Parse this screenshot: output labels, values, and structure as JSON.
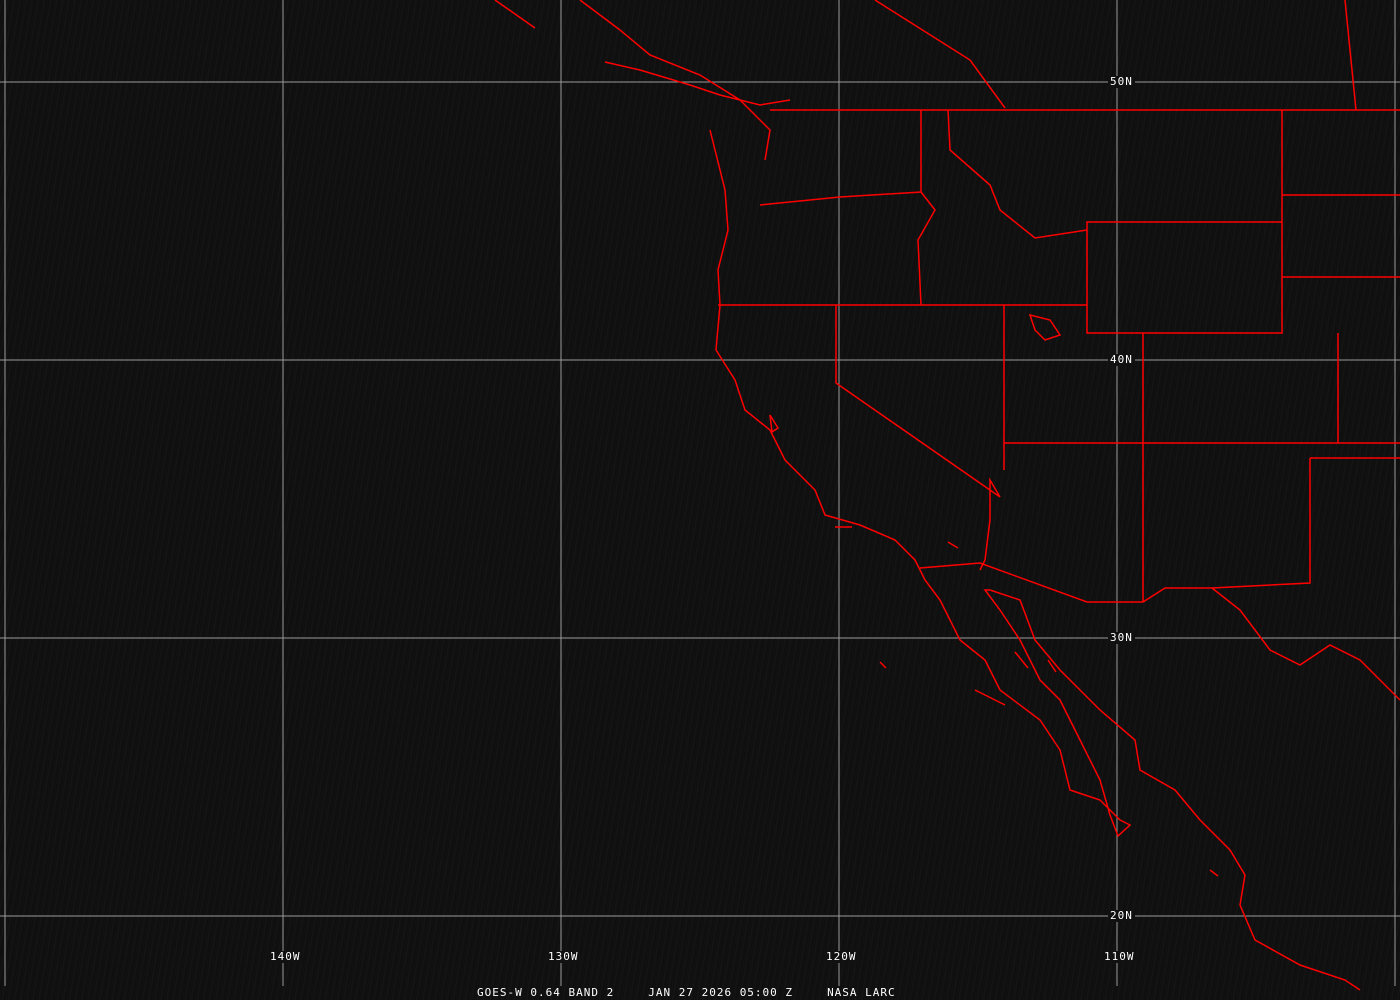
{
  "map": {
    "lat_labels": [
      "50N",
      "40N",
      "30N",
      "20N"
    ],
    "lon_labels": [
      "140W",
      "130W",
      "120W",
      "110W"
    ],
    "grid_color": "#9a9a9a",
    "boundary_color": "#ff0000",
    "background_color": "#111111"
  },
  "footer": {
    "product": "GOES-W 0.64 BAND 2",
    "datetime": "JAN 27 2026 05:00 Z",
    "credit": "NASA LARC"
  }
}
